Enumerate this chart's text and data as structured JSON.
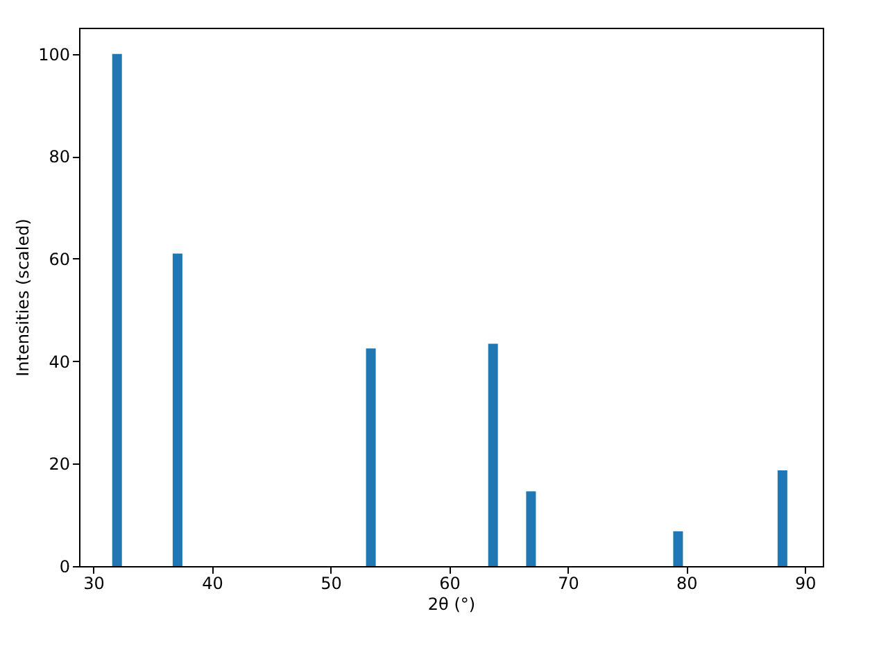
{
  "chart_data": {
    "type": "bar",
    "x": [
      32.0,
      37.1,
      53.4,
      63.7,
      66.9,
      79.3,
      88.1
    ],
    "series": [
      {
        "color": "#1f77b4",
        "values": [
          100,
          61.0,
          42.5,
          43.4,
          14.6,
          6.8,
          18.7
        ]
      }
    ],
    "xlabel": "2θ (°)",
    "ylabel": "Intensities (scaled)",
    "xlim": [
      28.8,
      91.5
    ],
    "xticks": [
      30,
      40,
      50,
      60,
      70,
      80,
      90
    ],
    "ylim": [
      0,
      105.1
    ],
    "yticks": [
      0,
      20,
      40,
      60,
      80,
      100
    ],
    "grid": false
  }
}
